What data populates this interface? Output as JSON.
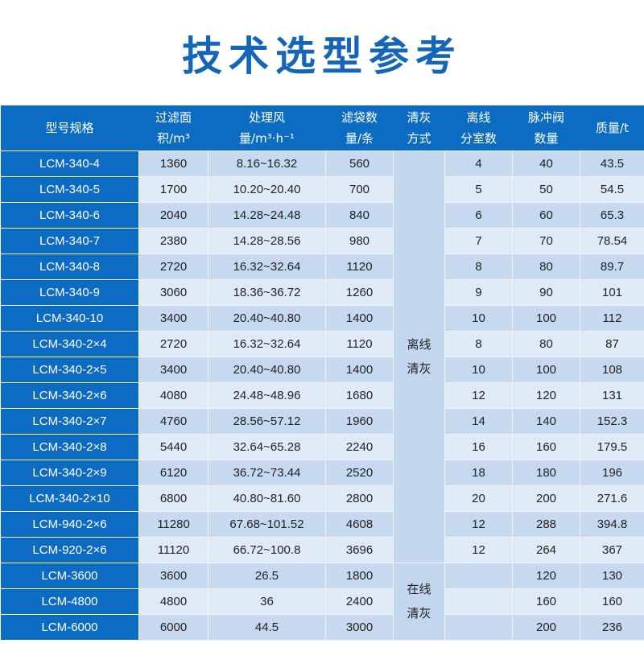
{
  "title": "技术选型参考",
  "headers": [
    [
      "型号规格"
    ],
    [
      "过滤面",
      "积/m³"
    ],
    [
      "处理风",
      "量/m³·h⁻¹"
    ],
    [
      "滤袋数",
      "量/条"
    ],
    [
      "清灰",
      "方式"
    ],
    [
      "离线",
      "分室数"
    ],
    [
      "脉冲阀",
      "数量"
    ],
    [
      "质量/t"
    ]
  ],
  "clean_offline": [
    "离线",
    "清灰"
  ],
  "clean_online": [
    "在线",
    "清灰"
  ],
  "rows": [
    [
      "LCM-340-4",
      "1360",
      "8.16~16.32",
      "560",
      "4",
      "40",
      "43.5"
    ],
    [
      "LCM-340-5",
      "1700",
      "10.20~20.40",
      "700",
      "5",
      "50",
      "54.5"
    ],
    [
      "LCM-340-6",
      "2040",
      "14.28~24.48",
      "840",
      "6",
      "60",
      "65.3"
    ],
    [
      "LCM-340-7",
      "2380",
      "14.28~28.56",
      "980",
      "7",
      "70",
      "78.54"
    ],
    [
      "LCM-340-8",
      "2720",
      "16.32~32.64",
      "1120",
      "8",
      "80",
      "89.7"
    ],
    [
      "LCM-340-9",
      "3060",
      "18.36~36.72",
      "1260",
      "9",
      "90",
      "101"
    ],
    [
      "LCM-340-10",
      "3400",
      "20.40~40.80",
      "1400",
      "10",
      "100",
      "112"
    ],
    [
      "LCM-340-2×4",
      "2720",
      "16.32~32.64",
      "1120",
      "8",
      "80",
      "87"
    ],
    [
      "LCM-340-2×5",
      "3400",
      "20.40~40.80",
      "1400",
      "10",
      "100",
      "108"
    ],
    [
      "LCM-340-2×6",
      "4080",
      "24.48~48.96",
      "1680",
      "12",
      "120",
      "131"
    ],
    [
      "LCM-340-2×7",
      "4760",
      "28.56~57.12",
      "1960",
      "14",
      "140",
      "152.3"
    ],
    [
      "LCM-340-2×8",
      "5440",
      "32.64~65.28",
      "2240",
      "16",
      "160",
      "179.5"
    ],
    [
      "LCM-340-2×9",
      "6120",
      "36.72~73.44",
      "2520",
      "18",
      "180",
      "196"
    ],
    [
      "LCM-340-2×10",
      "6800",
      "40.80~81.60",
      "2800",
      "20",
      "200",
      "271.6"
    ],
    [
      "LCM-940-2×6",
      "11280",
      "67.68~101.52",
      "4608",
      "12",
      "288",
      "394.8"
    ],
    [
      "LCM-920-2×6",
      "11120",
      "66.72~100.8",
      "3696",
      "12",
      "264",
      "367"
    ],
    [
      "LCM-3600",
      "3600",
      "26.5",
      "1800",
      "",
      "120",
      "130"
    ],
    [
      "LCM-4800",
      "4800",
      "36",
      "2400",
      "",
      "160",
      "160"
    ],
    [
      "LCM-6000",
      "6000",
      "44.5",
      "3000",
      "",
      "200",
      "236"
    ]
  ]
}
